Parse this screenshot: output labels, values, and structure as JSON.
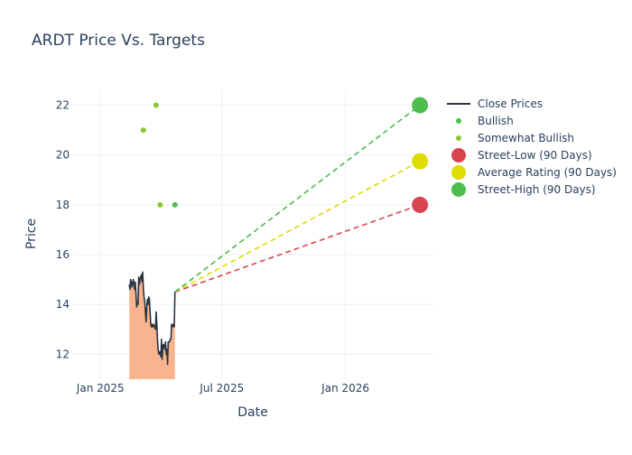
{
  "chart_data": {
    "type": "line",
    "title": "ARDT Price Vs. Targets",
    "xlabel": "Date",
    "ylabel": "Price",
    "x_range": [
      "2024-11-20",
      "2026-05-12"
    ],
    "ylim": [
      11,
      22.6
    ],
    "x_ticks": [
      {
        "date": "2025-01-01",
        "label": "Jan 2025"
      },
      {
        "date": "2025-07-01",
        "label": "Jul 2025"
      },
      {
        "date": "2026-01-01",
        "label": "Jan 2026"
      }
    ],
    "y_ticks": [
      12,
      14,
      16,
      18,
      20,
      22
    ],
    "grid": true,
    "legend_position": "right",
    "series": [
      {
        "name": "Close Prices",
        "kind": "line-area",
        "color": "#2a3441",
        "fill_color": "#f9b48f",
        "points": [
          [
            "2025-02-13",
            14.8
          ],
          [
            "2025-02-14",
            14.6
          ],
          [
            "2025-02-15",
            15.0
          ],
          [
            "2025-02-17",
            14.7
          ],
          [
            "2025-02-18",
            14.9
          ],
          [
            "2025-02-19",
            15.0
          ],
          [
            "2025-02-20",
            14.8
          ],
          [
            "2025-02-21",
            14.6
          ],
          [
            "2025-02-22",
            14.9
          ],
          [
            "2025-02-24",
            13.9
          ],
          [
            "2025-02-25",
            14.1
          ],
          [
            "2025-02-26",
            14.0
          ],
          [
            "2025-02-27",
            15.1
          ],
          [
            "2025-02-28",
            14.8
          ],
          [
            "2025-03-01",
            15.0
          ],
          [
            "2025-03-03",
            15.2
          ],
          [
            "2025-03-04",
            14.9
          ],
          [
            "2025-03-05",
            15.3
          ],
          [
            "2025-03-06",
            14.6
          ],
          [
            "2025-03-07",
            14.3
          ],
          [
            "2025-03-08",
            14.1
          ],
          [
            "2025-03-10",
            13.3
          ],
          [
            "2025-03-11",
            13.9
          ],
          [
            "2025-03-12",
            14.2
          ],
          [
            "2025-03-13",
            14.0
          ],
          [
            "2025-03-14",
            14.3
          ],
          [
            "2025-03-15",
            14.2
          ],
          [
            "2025-03-17",
            13.2
          ],
          [
            "2025-03-18",
            13.1
          ],
          [
            "2025-03-19",
            13.2
          ],
          [
            "2025-03-20",
            13.1
          ],
          [
            "2025-03-21",
            13.2
          ],
          [
            "2025-03-24",
            13.0
          ],
          [
            "2025-03-25",
            13.7
          ],
          [
            "2025-03-26",
            13.2
          ],
          [
            "2025-03-27",
            12.6
          ],
          [
            "2025-03-28",
            12.2
          ],
          [
            "2025-03-29",
            12.0
          ],
          [
            "2025-03-31",
            12.1
          ],
          [
            "2025-04-01",
            11.9
          ],
          [
            "2025-04-02",
            12.6
          ],
          [
            "2025-04-03",
            11.8
          ],
          [
            "2025-04-04",
            12.3
          ],
          [
            "2025-04-05",
            12.4
          ],
          [
            "2025-04-07",
            12.2
          ],
          [
            "2025-04-08",
            12.5
          ],
          [
            "2025-04-09",
            12.0
          ],
          [
            "2025-04-10",
            12.2
          ],
          [
            "2025-04-11",
            11.6
          ],
          [
            "2025-04-12",
            12.5
          ],
          [
            "2025-04-14",
            12.5
          ],
          [
            "2025-04-15",
            12.6
          ],
          [
            "2025-04-16",
            12.6
          ],
          [
            "2025-04-17",
            13.2
          ],
          [
            "2025-04-18",
            13.1
          ],
          [
            "2025-04-19",
            13.2
          ],
          [
            "2025-04-21",
            13.1
          ],
          [
            "2025-04-22",
            14.5
          ]
        ]
      },
      {
        "name": "Bullish",
        "kind": "marker",
        "color": "#4dbd4d",
        "points": [
          [
            "2025-04-22",
            18.0
          ]
        ]
      },
      {
        "name": "Somewhat Bullish",
        "kind": "marker",
        "color": "#8bc72e",
        "points": [
          [
            "2025-03-06",
            21.0
          ],
          [
            "2025-03-25",
            22.0
          ],
          [
            "2025-03-31",
            18.0
          ]
        ]
      },
      {
        "name": "Street-Low (90 Days)",
        "kind": "target",
        "color": "#d9444f",
        "from": [
          "2025-04-22",
          14.5
        ],
        "to": [
          "2026-04-22",
          18.0
        ]
      },
      {
        "name": "Average Rating (90 Days)",
        "kind": "target",
        "color": "#dddd00",
        "from": [
          "2025-04-22",
          14.5
        ],
        "to": [
          "2026-04-22",
          19.75
        ]
      },
      {
        "name": "Street-High (90 Days)",
        "kind": "target",
        "color": "#4dbd4d",
        "from": [
          "2025-04-22",
          14.5
        ],
        "to": [
          "2026-04-22",
          22.0
        ]
      }
    ]
  }
}
